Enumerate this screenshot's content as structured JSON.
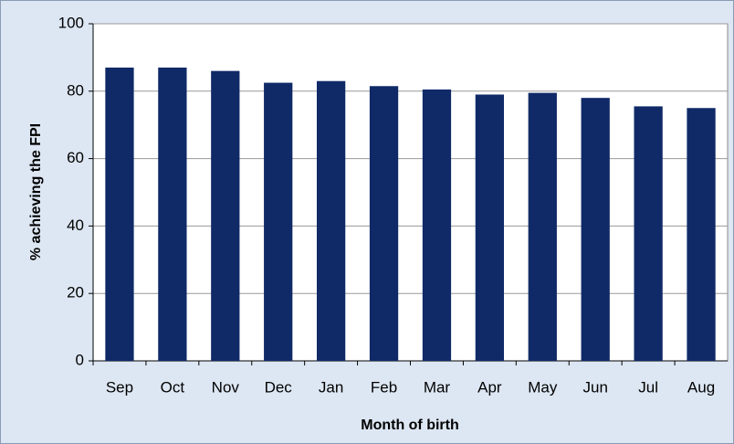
{
  "chart_data": {
    "type": "bar",
    "x_label": "Month of birth",
    "y_label": "% achieving the FPI",
    "categories": [
      "Sep",
      "Oct",
      "Nov",
      "Dec",
      "Jan",
      "Feb",
      "Mar",
      "Apr",
      "May",
      "Jun",
      "Jul",
      "Aug"
    ],
    "values": [
      87,
      87,
      86,
      82.5,
      83,
      81.5,
      80.5,
      79,
      79.5,
      78,
      75.5,
      75
    ],
    "color": "#102a68",
    "ylim": [
      0,
      100
    ],
    "yticks": [
      0,
      20,
      40,
      60,
      80,
      100
    ],
    "grid": true
  }
}
